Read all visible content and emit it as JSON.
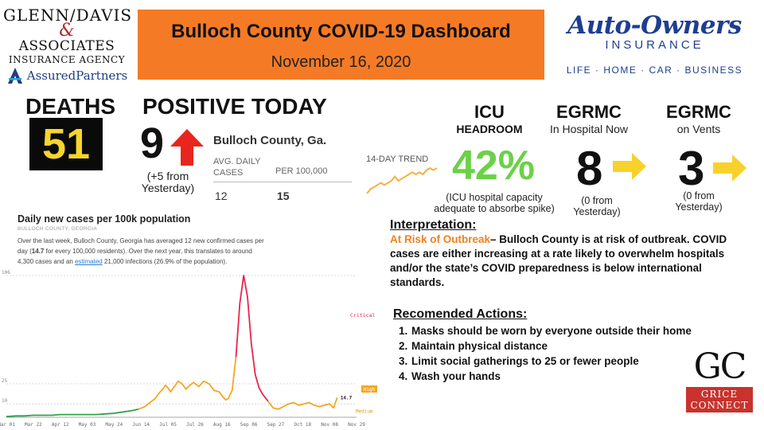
{
  "sponsor_left": {
    "line1": "GLENN/DAVIS",
    "amp": "&",
    "line2": "ASSOCIATES",
    "line3": "INSURANCE AGENCY",
    "line4": "AssuredPartners"
  },
  "header": {
    "title": "Bulloch County COVID-19 Dashboard",
    "date": "November 16, 2020"
  },
  "sponsor_right": {
    "brand": "Auto-Owners",
    "subtitle": "INSURANCE",
    "tagline": "LIFE · HOME · CAR · BUSINESS"
  },
  "deaths": {
    "label": "DEATHS",
    "value": "51"
  },
  "positive_today": {
    "label": "POSITIVE TODAY",
    "value": "9",
    "change_line1": "(+5  from",
    "change_line2": "Yesterday)"
  },
  "county_table": {
    "title": "Bulloch County, Ga.",
    "col1_header_line1": "AVG. DAILY",
    "col1_header_line2": "CASES",
    "col2_header": "PER 100,000",
    "col1_value": "12",
    "col2_value": "15",
    "trend_label": "14-DAY TREND",
    "trend_values": [
      6,
      8,
      9,
      10,
      11,
      10,
      11,
      12,
      14,
      12,
      13,
      14,
      15,
      16,
      15,
      16,
      15,
      17,
      18,
      17,
      18
    ]
  },
  "icu": {
    "label": "ICU",
    "sub": "HEADROOM",
    "value": "42%",
    "note_line1": "(ICU hospital capacity",
    "note_line2": "adequate to absorbe spike)"
  },
  "egrmc_hospital": {
    "label": "EGRMC",
    "sub": "In Hospital Now",
    "value": "8",
    "note_line1": "(0 from",
    "note_line2": "Yesterday)"
  },
  "egrmc_vents": {
    "label": "EGRMC",
    "sub": "on Vents",
    "value": "3",
    "note_line1": "(0 from",
    "note_line2": "Yesterday)"
  },
  "colors": {
    "banner": "#f47a26",
    "arrow_up": "#e8261d",
    "arrow_flat": "#f8d22a",
    "icu_green": "#6bd147",
    "deaths_yellow": "#f6d52c",
    "risk_orange": "#f0811c",
    "line_red": "#e8264d",
    "line_orange": "#f5a623",
    "line_green": "#2fa24a"
  },
  "icons": {
    "positive_change": "arrow-up-icon",
    "hospital_change": "arrow-right-icon",
    "vents_change": "arrow-right-icon"
  },
  "chart_text": {
    "title": "Daily new cases per 100k population",
    "subtitle": "BULLOCH COUNTY, GEORGIA",
    "desc_p1": "Over the last week, Bulloch County, Georgia has averaged 12 new confirmed cases per day (",
    "desc_bold": "14.7",
    "desc_p2": " for every 100,000 residents). Over the next year, this translates to around 4,300 cases and an ",
    "desc_link": "estimated",
    "desc_p3": " 21,000 infections (26.9% of the population)."
  },
  "chart_data": {
    "type": "line",
    "title": "Daily new cases per 100k population",
    "ylabel": "",
    "xlabel": "",
    "yticks": [
      10,
      25,
      106
    ],
    "ylim": [
      0,
      106
    ],
    "xticks": [
      "Mar 01",
      "Mar 22",
      "Apr 12",
      "May 03",
      "May 24",
      "Jun 14",
      "Jul 05",
      "Jul 26",
      "Aug 16",
      "Sep 06",
      "Sep 27",
      "Oct 18",
      "Nov 08",
      "Nov 29"
    ],
    "xrange_days": [
      0,
      273
    ],
    "threshold_labels": [
      {
        "label": "Critical",
        "value": 75
      },
      {
        "label": "High",
        "value": 14.7
      },
      {
        "label": "Medium",
        "value": 5
      }
    ],
    "last_value_label": "14.7",
    "x": [
      0,
      7,
      14,
      21,
      28,
      35,
      42,
      49,
      56,
      63,
      70,
      77,
      84,
      91,
      98,
      103,
      108,
      112,
      116,
      119,
      122,
      124,
      126,
      128,
      131,
      134,
      137,
      140,
      143,
      146,
      150,
      154,
      158,
      162,
      166,
      169,
      171,
      173,
      176,
      179,
      182,
      185,
      188,
      191,
      194,
      197,
      200,
      204,
      208,
      212,
      216,
      220,
      224,
      228,
      232,
      236,
      240,
      244,
      248,
      252,
      255,
      258
    ],
    "y": [
      0.5,
      1,
      1,
      1.5,
      1.5,
      1.5,
      2,
      2,
      2,
      2,
      2,
      2.5,
      3,
      4,
      5,
      6,
      8,
      11,
      14,
      18,
      21,
      24,
      22,
      19,
      23,
      27,
      25,
      21,
      24,
      26,
      23,
      27,
      25,
      20,
      19,
      15,
      13,
      14,
      20,
      45,
      85,
      106,
      90,
      55,
      32,
      22,
      17,
      12,
      7,
      6,
      8,
      10,
      11,
      9,
      10,
      11,
      9,
      8,
      9,
      10,
      7,
      14.7
    ],
    "color_segments": [
      {
        "from": 0,
        "to": 103,
        "color": "green"
      },
      {
        "from": 103,
        "to": 179,
        "color": "orange"
      },
      {
        "from": 179,
        "to": 204,
        "color": "red"
      },
      {
        "from": 204,
        "to": 258,
        "color": "orange"
      }
    ]
  },
  "interpretation": {
    "heading": "Interpretation:",
    "risk": "At Risk of Outbreak",
    "text": "– Bulloch County is at risk of outbreak. COVID cases are either increasing at a rate likely to overwhelm hospitals and/or the state’s COVID preparedness is below international standards."
  },
  "actions": {
    "heading": "Recomended Actions:",
    "items": [
      "Masks should be worn by everyone outside their home",
      "Maintain physical distance",
      "Limit social gatherings to 25 or fewer people",
      "Wash your hands"
    ]
  },
  "grice": {
    "logo": "GC",
    "line1": "GRICE",
    "line2": "CONNECT"
  }
}
